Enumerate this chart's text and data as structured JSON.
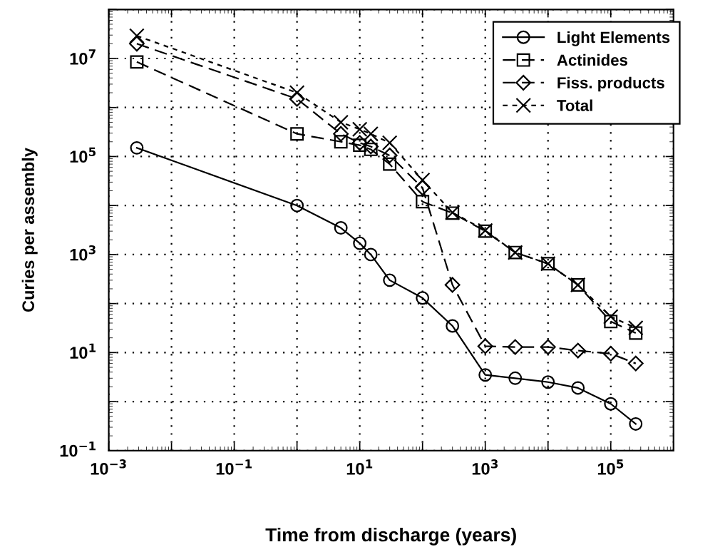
{
  "chart_data": {
    "type": "line",
    "xlabel": "Time from discharge (years)",
    "ylabel": "Curies per assembly",
    "log": "xy",
    "grid": true,
    "legend": "top right",
    "xlim": [
      0.001,
      1000000
    ],
    "ylim": [
      0.1,
      100000000
    ],
    "xticks": [
      {
        "value": 0.001,
        "label": "10$^{−3}$"
      },
      {
        "value": 0.01,
        "label": null
      },
      {
        "value": 0.1,
        "label": "10$^{−1}$"
      },
      {
        "value": 1,
        "label": null
      },
      {
        "value": 10,
        "label": "10$^{1}$"
      },
      {
        "value": 100,
        "label": null
      },
      {
        "value": 1000,
        "label": "10$^{3}$"
      },
      {
        "value": 10000,
        "label": null
      },
      {
        "value": 100000,
        "label": "10$^{5}$"
      },
      {
        "value": 1000000,
        "label": null
      }
    ],
    "yticks": [
      {
        "value": 0.1,
        "label": "10$^{−1}$"
      },
      {
        "value": 1,
        "label": null
      },
      {
        "value": 10,
        "label": "10$^{1}$"
      },
      {
        "value": 100,
        "label": null
      },
      {
        "value": 1000,
        "label": "10$^{3}$"
      },
      {
        "value": 10000,
        "label": null
      },
      {
        "value": 100000,
        "label": "10$^{5}$"
      },
      {
        "value": 1000000,
        "label": null
      },
      {
        "value": 10000000,
        "label": "10$^{7}$"
      },
      {
        "value": 100000000,
        "label": null
      }
    ],
    "x": [
      0.0028,
      1,
      5,
      10,
      15,
      30,
      100,
      300,
      1000,
      3000,
      10000,
      30000,
      100000,
      250000
    ],
    "series": [
      {
        "name": "Light Elements",
        "color": "#000000",
        "marker": "circle",
        "line_style": "solid",
        "values": [
          150000,
          10000,
          3500,
          1700,
          1000,
          300,
          130,
          35,
          3.5,
          3,
          2.5,
          1.9,
          0.9,
          0.35
        ]
      },
      {
        "name": "Actinides",
        "color": "#000000",
        "marker": "square",
        "line_style": "dashed",
        "values": [
          8500000,
          290000,
          200000,
          170000,
          140000,
          70000,
          12000,
          7000,
          3000,
          1100,
          650,
          240,
          43,
          25
        ]
      },
      {
        "name": "Fiss. products",
        "color": "#000000",
        "marker": "diamond",
        "line_style": "dashed",
        "values": [
          20000000,
          1500000,
          290000,
          190000,
          160000,
          105000,
          23000,
          240,
          13.5,
          13,
          13,
          11,
          9.5,
          6
        ]
      },
      {
        "name": "Total",
        "color": "#000000",
        "marker": "cross",
        "line_style": "dotted",
        "values": [
          29000000,
          2000000,
          500000,
          360000,
          290000,
          190000,
          33000,
          7200,
          3100,
          1100,
          650,
          240,
          54,
          32
        ]
      }
    ]
  }
}
